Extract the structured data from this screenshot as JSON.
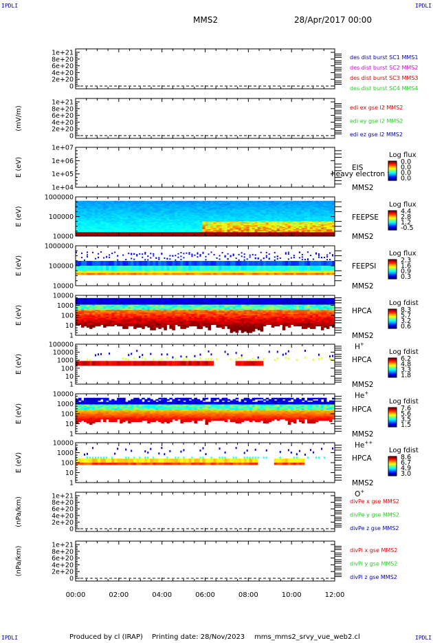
{
  "corners": {
    "tl": "IPDLI",
    "tr": "IPDLI",
    "bl": "IPDLI",
    "br": "IPDLI"
  },
  "header": {
    "spacecraft": "MMS2",
    "date": "28/Apr/2017 00:00"
  },
  "footer": {
    "produced_by": "Produced by cl (IRAP)",
    "printing_date": "Printing date: 28/Nov/2023",
    "script": "mms_mms2_srvy_vue_web2.cl"
  },
  "colors": {
    "red": "#dd0000",
    "magenta": "#dd00dd",
    "green": "#22cc22",
    "blue": "#0000bb",
    "dashed": "#000000"
  },
  "chart_data": [
    {
      "type": "line",
      "ylabel": "",
      "y_ticks": [
        "1e+21",
        "8e+20",
        "6e+20",
        "4e+20",
        "2e+20",
        "0"
      ],
      "ylim": [
        0,
        1e+21
      ],
      "series": [
        {
          "name": "des dist burst SC1 MMS1",
          "color": "#0000bb",
          "values": []
        },
        {
          "name": "des dist burst SC2 MMS2",
          "color": "#dd00dd",
          "values": []
        },
        {
          "name": "des dist burst SC3 MMS3",
          "color": "#dd0000",
          "values": []
        },
        {
          "name": "des dist burst SC4 MMS4",
          "color": "#22cc22",
          "values": []
        }
      ],
      "zero_line": "dashed"
    },
    {
      "type": "line",
      "ylabel": "(mV/m)",
      "y_ticks": [
        "1e+21",
        "8e+20",
        "6e+20",
        "4e+20",
        "2e+20",
        "0"
      ],
      "ylim": [
        0,
        1e+21
      ],
      "series": [
        {
          "name": "edi ex gse l2 MMS2",
          "color": "#dd0000",
          "values": []
        },
        {
          "name": "edi ey gse l2 MMS2",
          "color": "#22cc22",
          "values": []
        },
        {
          "name": "edi ez gse l2 MMS2",
          "color": "#0000bb",
          "values": []
        }
      ],
      "zero_line": "dashed"
    },
    {
      "type": "heatmap",
      "ylabel": "E (eV)",
      "y_ticks": [
        "1e+07",
        "1e+06",
        "1e+05",
        "1e+04"
      ],
      "ylim": [
        10000.0,
        10000000.0
      ],
      "log_scale": true,
      "labels": [
        "EIS",
        "MMS2"
      ],
      "overlay_text": "heavy electron to",
      "colorbar": {
        "title": "Log flux",
        "ticks": [
          "0.0",
          "0.0",
          "0.0",
          "0.0"
        ]
      },
      "profile": "empty"
    },
    {
      "type": "heatmap",
      "ylabel": "E (eV)",
      "y_ticks": [
        "1000000",
        "100000",
        "10000"
      ],
      "ylim": [
        10000,
        1000000
      ],
      "log_scale": true,
      "labels": [
        "FEEPSE",
        "MMS2"
      ],
      "colorbar": {
        "title": "Log flux",
        "ticks": [
          "4.4",
          "2.8",
          "1.2",
          "-0.5"
        ]
      },
      "profile": "feepse"
    },
    {
      "type": "heatmap",
      "ylabel": "E (eV)",
      "y_ticks": [
        "1000000",
        "100000",
        "10000"
      ],
      "ylim": [
        10000,
        1000000
      ],
      "log_scale": true,
      "labels": [
        "FEEPSI",
        "MMS2"
      ],
      "colorbar": {
        "title": "Log flux",
        "ticks": [
          "2.3",
          "1.6",
          "0.9",
          "0.3"
        ]
      },
      "profile": "feepsi"
    },
    {
      "type": "heatmap",
      "ylabel": "E (eV)",
      "y_ticks": [
        "10000",
        "1000",
        "100",
        "10",
        "1"
      ],
      "ylim": [
        1,
        30000
      ],
      "log_scale": true,
      "labels": [
        "HPCA",
        "MMS2"
      ],
      "species": "H",
      "species_sup": "+",
      "colorbar": {
        "title": "Log fdist",
        "ticks": [
          "8.3",
          "5.7",
          "3.2",
          "0.6"
        ]
      },
      "profile": "hplus"
    },
    {
      "type": "heatmap",
      "ylabel": "E (eV)",
      "y_ticks": [
        "100000",
        "10000",
        "1000",
        "100",
        "10",
        "1"
      ],
      "ylim": [
        1,
        100000
      ],
      "log_scale": true,
      "labels": [
        "HPCA",
        "MMS2"
      ],
      "species": "He",
      "species_sup": "+",
      "colorbar": {
        "title": "Log fdist",
        "ticks": [
          "6.2",
          "4.8",
          "3.3",
          "1.8"
        ]
      },
      "profile": "heplus"
    },
    {
      "type": "heatmap",
      "ylabel": "E (eV)",
      "y_ticks": [
        "10000",
        "1000",
        "100",
        "10",
        "1"
      ],
      "ylim": [
        1,
        30000
      ],
      "log_scale": true,
      "labels": [
        "HPCA",
        "MMS2"
      ],
      "species": "He",
      "species_sup": "++",
      "colorbar": {
        "title": "Log fdist",
        "ticks": [
          "7.6",
          "5.6",
          "3.5",
          "1.5"
        ]
      },
      "profile": "heplusplus"
    },
    {
      "type": "heatmap",
      "ylabel": "E (eV)",
      "y_ticks": [
        "10000",
        "1000",
        "100",
        "10",
        "1"
      ],
      "ylim": [
        1,
        30000
      ],
      "log_scale": true,
      "labels": [
        "HPCA",
        "MMS2"
      ],
      "species": "O",
      "species_sup": "+",
      "colorbar": {
        "title": "Log fdist",
        "ticks": [
          "8.6",
          "6.7",
          "4.9",
          "3.0"
        ]
      },
      "profile": "oplus"
    },
    {
      "type": "line",
      "ylabel": "(nPa/km)",
      "y_ticks": [
        "1e+21",
        "8e+20",
        "6e+20",
        "4e+20",
        "2e+20",
        "0"
      ],
      "ylim": [
        0,
        1e+21
      ],
      "series": [
        {
          "name": "divPe x gse MMS2",
          "color": "#dd0000",
          "values": []
        },
        {
          "name": "divPe y gse MMS2",
          "color": "#22cc22",
          "values": []
        },
        {
          "name": "divPe z gse MMS2",
          "color": "#0000bb",
          "values": []
        }
      ],
      "zero_line": "dashed"
    },
    {
      "type": "line",
      "ylabel": "(nPa/km)",
      "y_ticks": [
        "1e+21",
        "8e+20",
        "6e+20",
        "4e+20",
        "2e+20",
        "0"
      ],
      "ylim": [
        0,
        1e+21
      ],
      "series": [
        {
          "name": "divPi x gse MMS2",
          "color": "#dd0000",
          "values": []
        },
        {
          "name": "divPi y gse MMS2",
          "color": "#22cc22",
          "values": []
        },
        {
          "name": "divPi z gse MMS2",
          "color": "#0000bb",
          "values": []
        }
      ],
      "zero_line": "dashed"
    }
  ],
  "time_axis": {
    "ticks": [
      "00:00",
      "02:00",
      "04:00",
      "06:00",
      "08:00",
      "10:00",
      "12:00"
    ]
  }
}
